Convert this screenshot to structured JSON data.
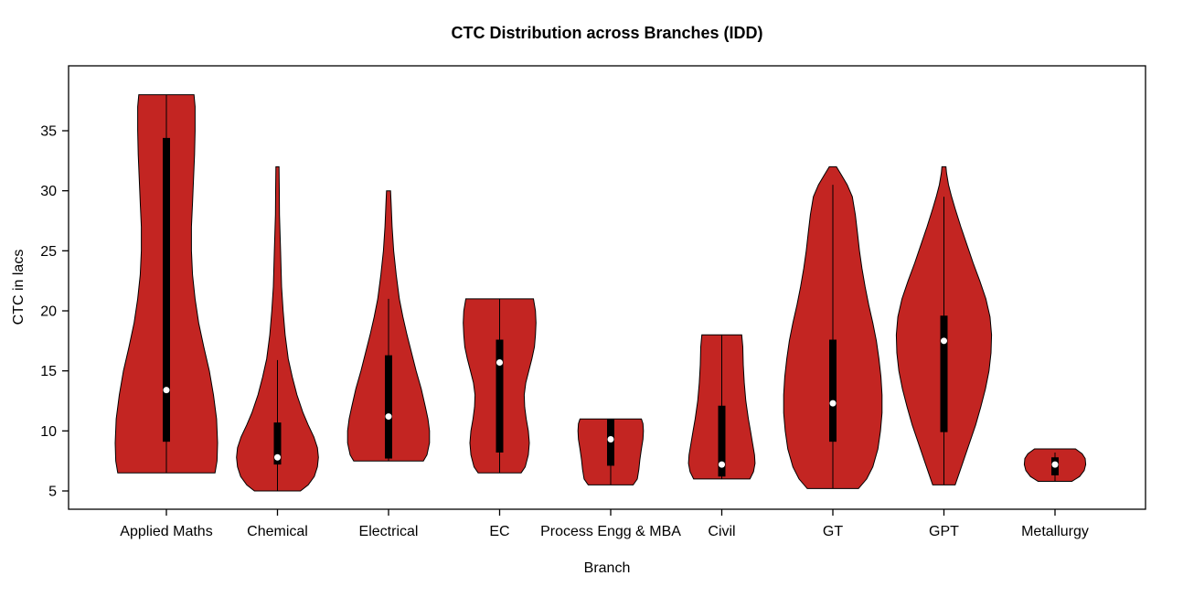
{
  "chart_data": {
    "type": "violin",
    "title": "CTC Distribution across Branches (IDD)",
    "xlabel": "Branch",
    "ylabel": "CTC in lacs",
    "yticks": [
      5,
      10,
      15,
      20,
      25,
      30,
      35
    ],
    "ylim": [
      3.5,
      40.5
    ],
    "grid": false,
    "legend": "none",
    "fill_color": "#C32522",
    "outline_color": "#000000",
    "box_color": "#000000",
    "median_dot_color": "#ffffff",
    "series": [
      {
        "branch": "Applied Maths",
        "min": 6.5,
        "max": 38,
        "q1": 9.1,
        "q3": 34.4,
        "median": 13.4,
        "whisker_low": 6.5,
        "whisker_high": 38,
        "profile": [
          [
            6.5,
            0.95
          ],
          [
            7.5,
            0.99
          ],
          [
            9,
            1.0
          ],
          [
            11,
            0.98
          ],
          [
            13,
            0.92
          ],
          [
            15,
            0.84
          ],
          [
            17,
            0.73
          ],
          [
            19,
            0.63
          ],
          [
            21,
            0.56
          ],
          [
            23,
            0.51
          ],
          [
            25,
            0.49
          ],
          [
            27,
            0.49
          ],
          [
            29,
            0.51
          ],
          [
            31,
            0.53
          ],
          [
            33,
            0.55
          ],
          [
            35,
            0.56
          ],
          [
            37,
            0.56
          ],
          [
            38,
            0.54
          ]
        ]
      },
      {
        "branch": "Chemical",
        "min": 5,
        "max": 32,
        "q1": 7.2,
        "q3": 10.7,
        "median": 7.8,
        "whisker_low": 5,
        "whisker_high": 15.9,
        "profile": [
          [
            5,
            0.45
          ],
          [
            5.5,
            0.6
          ],
          [
            6.2,
            0.72
          ],
          [
            7,
            0.78
          ],
          [
            7.8,
            0.8
          ],
          [
            8.6,
            0.78
          ],
          [
            9.5,
            0.71
          ],
          [
            10.5,
            0.6
          ],
          [
            11.5,
            0.5
          ],
          [
            13,
            0.38
          ],
          [
            14.5,
            0.29
          ],
          [
            16,
            0.21
          ],
          [
            18,
            0.15
          ],
          [
            20,
            0.11
          ],
          [
            22,
            0.08
          ],
          [
            25,
            0.06
          ],
          [
            28,
            0.04
          ],
          [
            30,
            0.035
          ],
          [
            32,
            0.03
          ]
        ]
      },
      {
        "branch": "Electrical",
        "min": 7.5,
        "max": 30,
        "q1": 7.7,
        "q3": 16.3,
        "median": 11.2,
        "whisker_low": 7.5,
        "whisker_high": 21,
        "profile": [
          [
            7.5,
            0.68
          ],
          [
            8,
            0.75
          ],
          [
            9,
            0.8
          ],
          [
            10,
            0.8
          ],
          [
            11,
            0.77
          ],
          [
            12,
            0.72
          ],
          [
            13.5,
            0.64
          ],
          [
            15,
            0.54
          ],
          [
            16.5,
            0.45
          ],
          [
            18,
            0.36
          ],
          [
            19.5,
            0.28
          ],
          [
            21,
            0.21
          ],
          [
            23,
            0.15
          ],
          [
            25,
            0.1
          ],
          [
            27,
            0.07
          ],
          [
            29,
            0.05
          ],
          [
            30,
            0.04
          ]
        ]
      },
      {
        "branch": "EC",
        "min": 6.5,
        "max": 21,
        "q1": 8.2,
        "q3": 17.6,
        "median": 15.7,
        "whisker_low": 6.5,
        "whisker_high": 21,
        "profile": [
          [
            6.5,
            0.42
          ],
          [
            7,
            0.5
          ],
          [
            8,
            0.56
          ],
          [
            9,
            0.58
          ],
          [
            10,
            0.56
          ],
          [
            11,
            0.52
          ],
          [
            12,
            0.49
          ],
          [
            13,
            0.48
          ],
          [
            14,
            0.51
          ],
          [
            15,
            0.57
          ],
          [
            16,
            0.63
          ],
          [
            17,
            0.68
          ],
          [
            18,
            0.7
          ],
          [
            19,
            0.71
          ],
          [
            20,
            0.7
          ],
          [
            21,
            0.66
          ]
        ]
      },
      {
        "branch": "Process Engg & MBA",
        "min": 5.5,
        "max": 11,
        "q1": 7.1,
        "q3": 11,
        "median": 9.3,
        "whisker_low": 5.5,
        "whisker_high": 11,
        "profile": [
          [
            5.5,
            0.44
          ],
          [
            6,
            0.52
          ],
          [
            6.8,
            0.55
          ],
          [
            7.6,
            0.57
          ],
          [
            8.5,
            0.6
          ],
          [
            9.3,
            0.63
          ],
          [
            10,
            0.64
          ],
          [
            10.6,
            0.63
          ],
          [
            11,
            0.6
          ]
        ]
      },
      {
        "branch": "Civil",
        "min": 6,
        "max": 18,
        "q1": 6.2,
        "q3": 12.1,
        "median": 7.2,
        "whisker_low": 6,
        "whisker_high": 18,
        "profile": [
          [
            6,
            0.55
          ],
          [
            6.6,
            0.62
          ],
          [
            7.3,
            0.65
          ],
          [
            8,
            0.64
          ],
          [
            9,
            0.6
          ],
          [
            10,
            0.56
          ],
          [
            11,
            0.52
          ],
          [
            12.5,
            0.47
          ],
          [
            14,
            0.44
          ],
          [
            15.5,
            0.42
          ],
          [
            17,
            0.41
          ],
          [
            18,
            0.39
          ]
        ]
      },
      {
        "branch": "GT",
        "min": 5.2,
        "max": 32,
        "q1": 9.1,
        "q3": 17.6,
        "median": 12.3,
        "whisker_low": 5.2,
        "whisker_high": 30.5,
        "profile": [
          [
            5.2,
            0.5
          ],
          [
            6,
            0.66
          ],
          [
            7,
            0.78
          ],
          [
            8.5,
            0.88
          ],
          [
            10,
            0.93
          ],
          [
            11.5,
            0.96
          ],
          [
            13,
            0.96
          ],
          [
            14.5,
            0.94
          ],
          [
            16,
            0.9
          ],
          [
            17.5,
            0.85
          ],
          [
            19,
            0.78
          ],
          [
            20.5,
            0.7
          ],
          [
            22,
            0.63
          ],
          [
            23.5,
            0.57
          ],
          [
            25,
            0.52
          ],
          [
            26.5,
            0.48
          ],
          [
            28,
            0.44
          ],
          [
            29.5,
            0.38
          ],
          [
            30.5,
            0.28
          ],
          [
            31.3,
            0.17
          ],
          [
            32,
            0.07
          ]
        ]
      },
      {
        "branch": "GPT",
        "min": 5.5,
        "max": 32,
        "q1": 9.9,
        "q3": 19.6,
        "median": 17.5,
        "whisker_low": 5.5,
        "whisker_high": 29.5,
        "profile": [
          [
            5.5,
            0.22
          ],
          [
            6.5,
            0.3
          ],
          [
            7.5,
            0.38
          ],
          [
            9,
            0.5
          ],
          [
            10.5,
            0.62
          ],
          [
            12,
            0.72
          ],
          [
            13.5,
            0.81
          ],
          [
            15,
            0.88
          ],
          [
            16.5,
            0.92
          ],
          [
            18,
            0.93
          ],
          [
            19.5,
            0.9
          ],
          [
            21,
            0.82
          ],
          [
            22.5,
            0.7
          ],
          [
            24,
            0.57
          ],
          [
            25.5,
            0.45
          ],
          [
            27,
            0.33
          ],
          [
            28.5,
            0.22
          ],
          [
            29.5,
            0.15
          ],
          [
            30.5,
            0.09
          ],
          [
            31.5,
            0.05
          ],
          [
            32,
            0.04
          ]
        ]
      },
      {
        "branch": "Metallurgy",
        "min": 5.8,
        "max": 8.5,
        "q1": 6.3,
        "q3": 7.8,
        "median": 7.2,
        "whisker_low": 5.8,
        "whisker_high": 8.2,
        "profile": [
          [
            5.8,
            0.33
          ],
          [
            6.2,
            0.48
          ],
          [
            6.7,
            0.57
          ],
          [
            7.2,
            0.6
          ],
          [
            7.7,
            0.59
          ],
          [
            8.1,
            0.53
          ],
          [
            8.5,
            0.4
          ]
        ]
      }
    ]
  }
}
